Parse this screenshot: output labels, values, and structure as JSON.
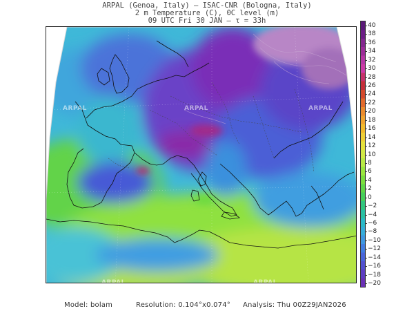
{
  "header": {
    "line1": "ARPAL (Genoa, Italy)  —  ISAC-CNR (Bologna, Italy)",
    "line2": "2 m Temperature (C), 0C level (m)",
    "line3": "09 UTC Fri 30 JAN  —  τ = 33h"
  },
  "watermark": "ARPAL",
  "colorbar": {
    "ticks": [
      "40",
      "38",
      "36",
      "34",
      "32",
      "30",
      "28",
      "26",
      "24",
      "22",
      "20",
      "18",
      "16",
      "14",
      "12",
      "10",
      "8",
      "6",
      "4",
      "2",
      "0",
      "−2",
      "−4",
      "−6",
      "−8",
      "−10",
      "−12",
      "−14",
      "−16",
      "−18",
      "−20"
    ],
    "colors": [
      "#5b1a78",
      "#6c1e86",
      "#84278f",
      "#9c2d98",
      "#b636a4",
      "#cc3ba6",
      "#c6316a",
      "#c42f3a",
      "#d34a2d",
      "#e26a2c",
      "#eb8b2c",
      "#f0a32e",
      "#f2ba2c",
      "#efcf36",
      "#e6e23c",
      "#d2ea46",
      "#b8ea45",
      "#9ae53f",
      "#7bdd3e",
      "#5fd646",
      "#46cf5a",
      "#31c57d",
      "#29c0a3",
      "#2ab9c7",
      "#36acd9",
      "#3e97e0",
      "#417de0",
      "#4965d9",
      "#5150cf",
      "#5d3dc2",
      "#6a30b5"
    ]
  },
  "footer": {
    "model": "Model: bolam",
    "resolution": "Resolution: 0.104°x0.074°",
    "analysis": "Analysis: Thu 00Z29JAN2026"
  }
}
